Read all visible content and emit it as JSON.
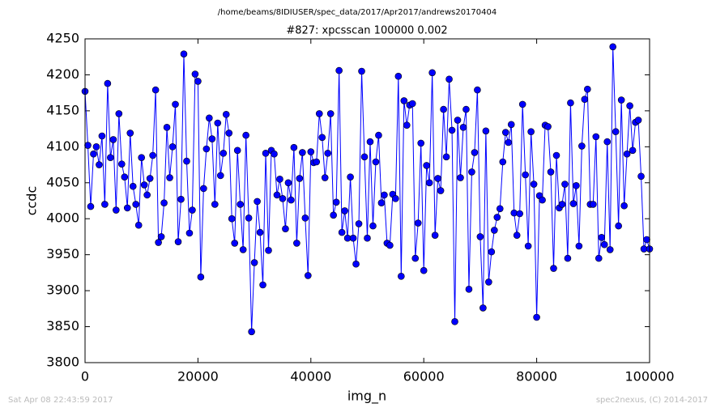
{
  "chart_data": {
    "type": "line",
    "header": "/home/beams/8IDIUSER/spec_data/2017/Apr2017/andrews20170404",
    "title": "#827: xpcsscan 100000 0.002",
    "xlabel": "img_n",
    "ylabel": "ccdc",
    "footer_left": "Sat Apr 08 22:43:59 2017",
    "footer_right": "spec2nexus, (C) 2014-2017",
    "xlim": [
      0,
      100000
    ],
    "xticks": [
      0,
      20000,
      40000,
      60000,
      80000,
      100000
    ],
    "ylim": [
      3800,
      4250
    ],
    "yticks": [
      3800,
      3850,
      3900,
      3950,
      4000,
      4050,
      4100,
      4150,
      4200,
      4250
    ],
    "grid": false,
    "x": [
      0,
      500,
      1000,
      1500,
      2000,
      2500,
      3000,
      3500,
      4000,
      4500,
      5000,
      5500,
      6000,
      6500,
      7000,
      7500,
      8000,
      8500,
      9000,
      9500,
      10000,
      10500,
      11000,
      11500,
      12000,
      12500,
      13000,
      13500,
      14000,
      14500,
      15000,
      15500,
      16000,
      16500,
      17000,
      17500,
      18000,
      18500,
      19000,
      19500,
      20000,
      20500,
      21000,
      21500,
      22000,
      22500,
      23000,
      23500,
      24000,
      24500,
      25000,
      25500,
      26000,
      26500,
      27000,
      27500,
      28000,
      28500,
      29000,
      29500,
      30000,
      30500,
      31000,
      31500,
      32000,
      32500,
      33000,
      33500,
      34000,
      34500,
      35000,
      35500,
      36000,
      36500,
      37000,
      37500,
      38000,
      38500,
      39000,
      39500,
      40000,
      40500,
      41000,
      41500,
      42000,
      42500,
      43000,
      43500,
      44000,
      44500,
      45000,
      45500,
      46000,
      46500,
      47000,
      47500,
      48000,
      48500,
      49000,
      49500,
      50000,
      50500,
      51000,
      51500,
      52000,
      52500,
      53000,
      53500,
      54000,
      54500,
      55000,
      55500,
      56000,
      56500,
      57000,
      57500,
      58000,
      58500,
      59000,
      59500,
      60000,
      60500,
      61000,
      61500,
      62000,
      62500,
      63000,
      63500,
      64000,
      64500,
      65000,
      65500,
      66000,
      66500,
      67000,
      67500,
      68000,
      68500,
      69000,
      69500,
      70000,
      70500,
      71000,
      71500,
      72000,
      72500,
      73000,
      73500,
      74000,
      74500,
      75000,
      75500,
      76000,
      76500,
      77000,
      77500,
      78000,
      78500,
      79000,
      79500,
      80000,
      80500,
      81000,
      81500,
      82000,
      82500,
      83000,
      83500,
      84000,
      84500,
      85000,
      85500,
      86000,
      86500,
      87000,
      87500,
      88000,
      88500,
      89000,
      89500,
      90000,
      90500,
      91000,
      91500,
      92000,
      92500,
      93000,
      93500,
      94000,
      94500,
      95000,
      95500,
      96000,
      96500,
      97000,
      97500,
      98000,
      98500,
      99000,
      99500,
      100000
    ],
    "series": [
      {
        "name": "ccdc",
        "color": "#0000ff",
        "values": [
          4177,
          4102,
          4017,
          4090,
          4100,
          4075,
          4115,
          4020,
          4188,
          4085,
          4110,
          4012,
          4146,
          4076,
          4058,
          4015,
          4119,
          4045,
          4020,
          3991,
          4085,
          4047,
          4033,
          4056,
          4088,
          4179,
          3967,
          3975,
          4022,
          4127,
          4057,
          4100,
          4159,
          3968,
          4027,
          4229,
          4080,
          3980,
          4012,
          4201,
          4191,
          3919,
          4042,
          4097,
          4140,
          4111,
          4020,
          4133,
          4060,
          4091,
          4145,
          4119,
          4000,
          3966,
          4095,
          4020,
          3957,
          4116,
          4001,
          3843,
          3939,
          4024,
          3981,
          3908,
          4091,
          3956,
          4095,
          4090,
          4033,
          4055,
          4028,
          3986,
          4050,
          4026,
          4099,
          3966,
          4056,
          4092,
          4001,
          3921,
          4093,
          4078,
          4079,
          4146,
          4113,
          4057,
          4091,
          4146,
          4005,
          4023,
          4206,
          3981,
          4011,
          3973,
          4058,
          3973,
          3937,
          3993,
          4205,
          4086,
          3973,
          4107,
          3990,
          4079,
          4116,
          4022,
          4033,
          3966,
          3963,
          4034,
          4028,
          4198,
          3920,
          4164,
          4130,
          4158,
          4160,
          3945,
          3994,
          4105,
          3928,
          4074,
          4050,
          4203,
          3977,
          4056,
          4039,
          4152,
          4086,
          4194,
          4123,
          3857,
          4137,
          4057,
          4127,
          4152,
          3902,
          4065,
          4092,
          4179,
          3975,
          3876,
          4122,
          3912,
          3954,
          3984,
          4002,
          4014,
          4079,
          4120,
          4106,
          4131,
          4008,
          3977,
          4007,
          4159,
          4061,
          3962,
          4121,
          4048,
          3863,
          4032,
          4026,
          4130,
          4128,
          4065,
          3931,
          4088,
          4015,
          4020,
          4048,
          3945,
          4161,
          4021,
          4046,
          3962,
          4101,
          4166,
          4180,
          4020,
          4020,
          4114,
          3945,
          3974,
          3964,
          4107,
          3957,
          4239,
          4121,
          3990,
          4165,
          4018,
          4090,
          4157,
          4095,
          4134,
          4137,
          4059,
          3958,
          3971,
          3958
        ]
      }
    ]
  }
}
